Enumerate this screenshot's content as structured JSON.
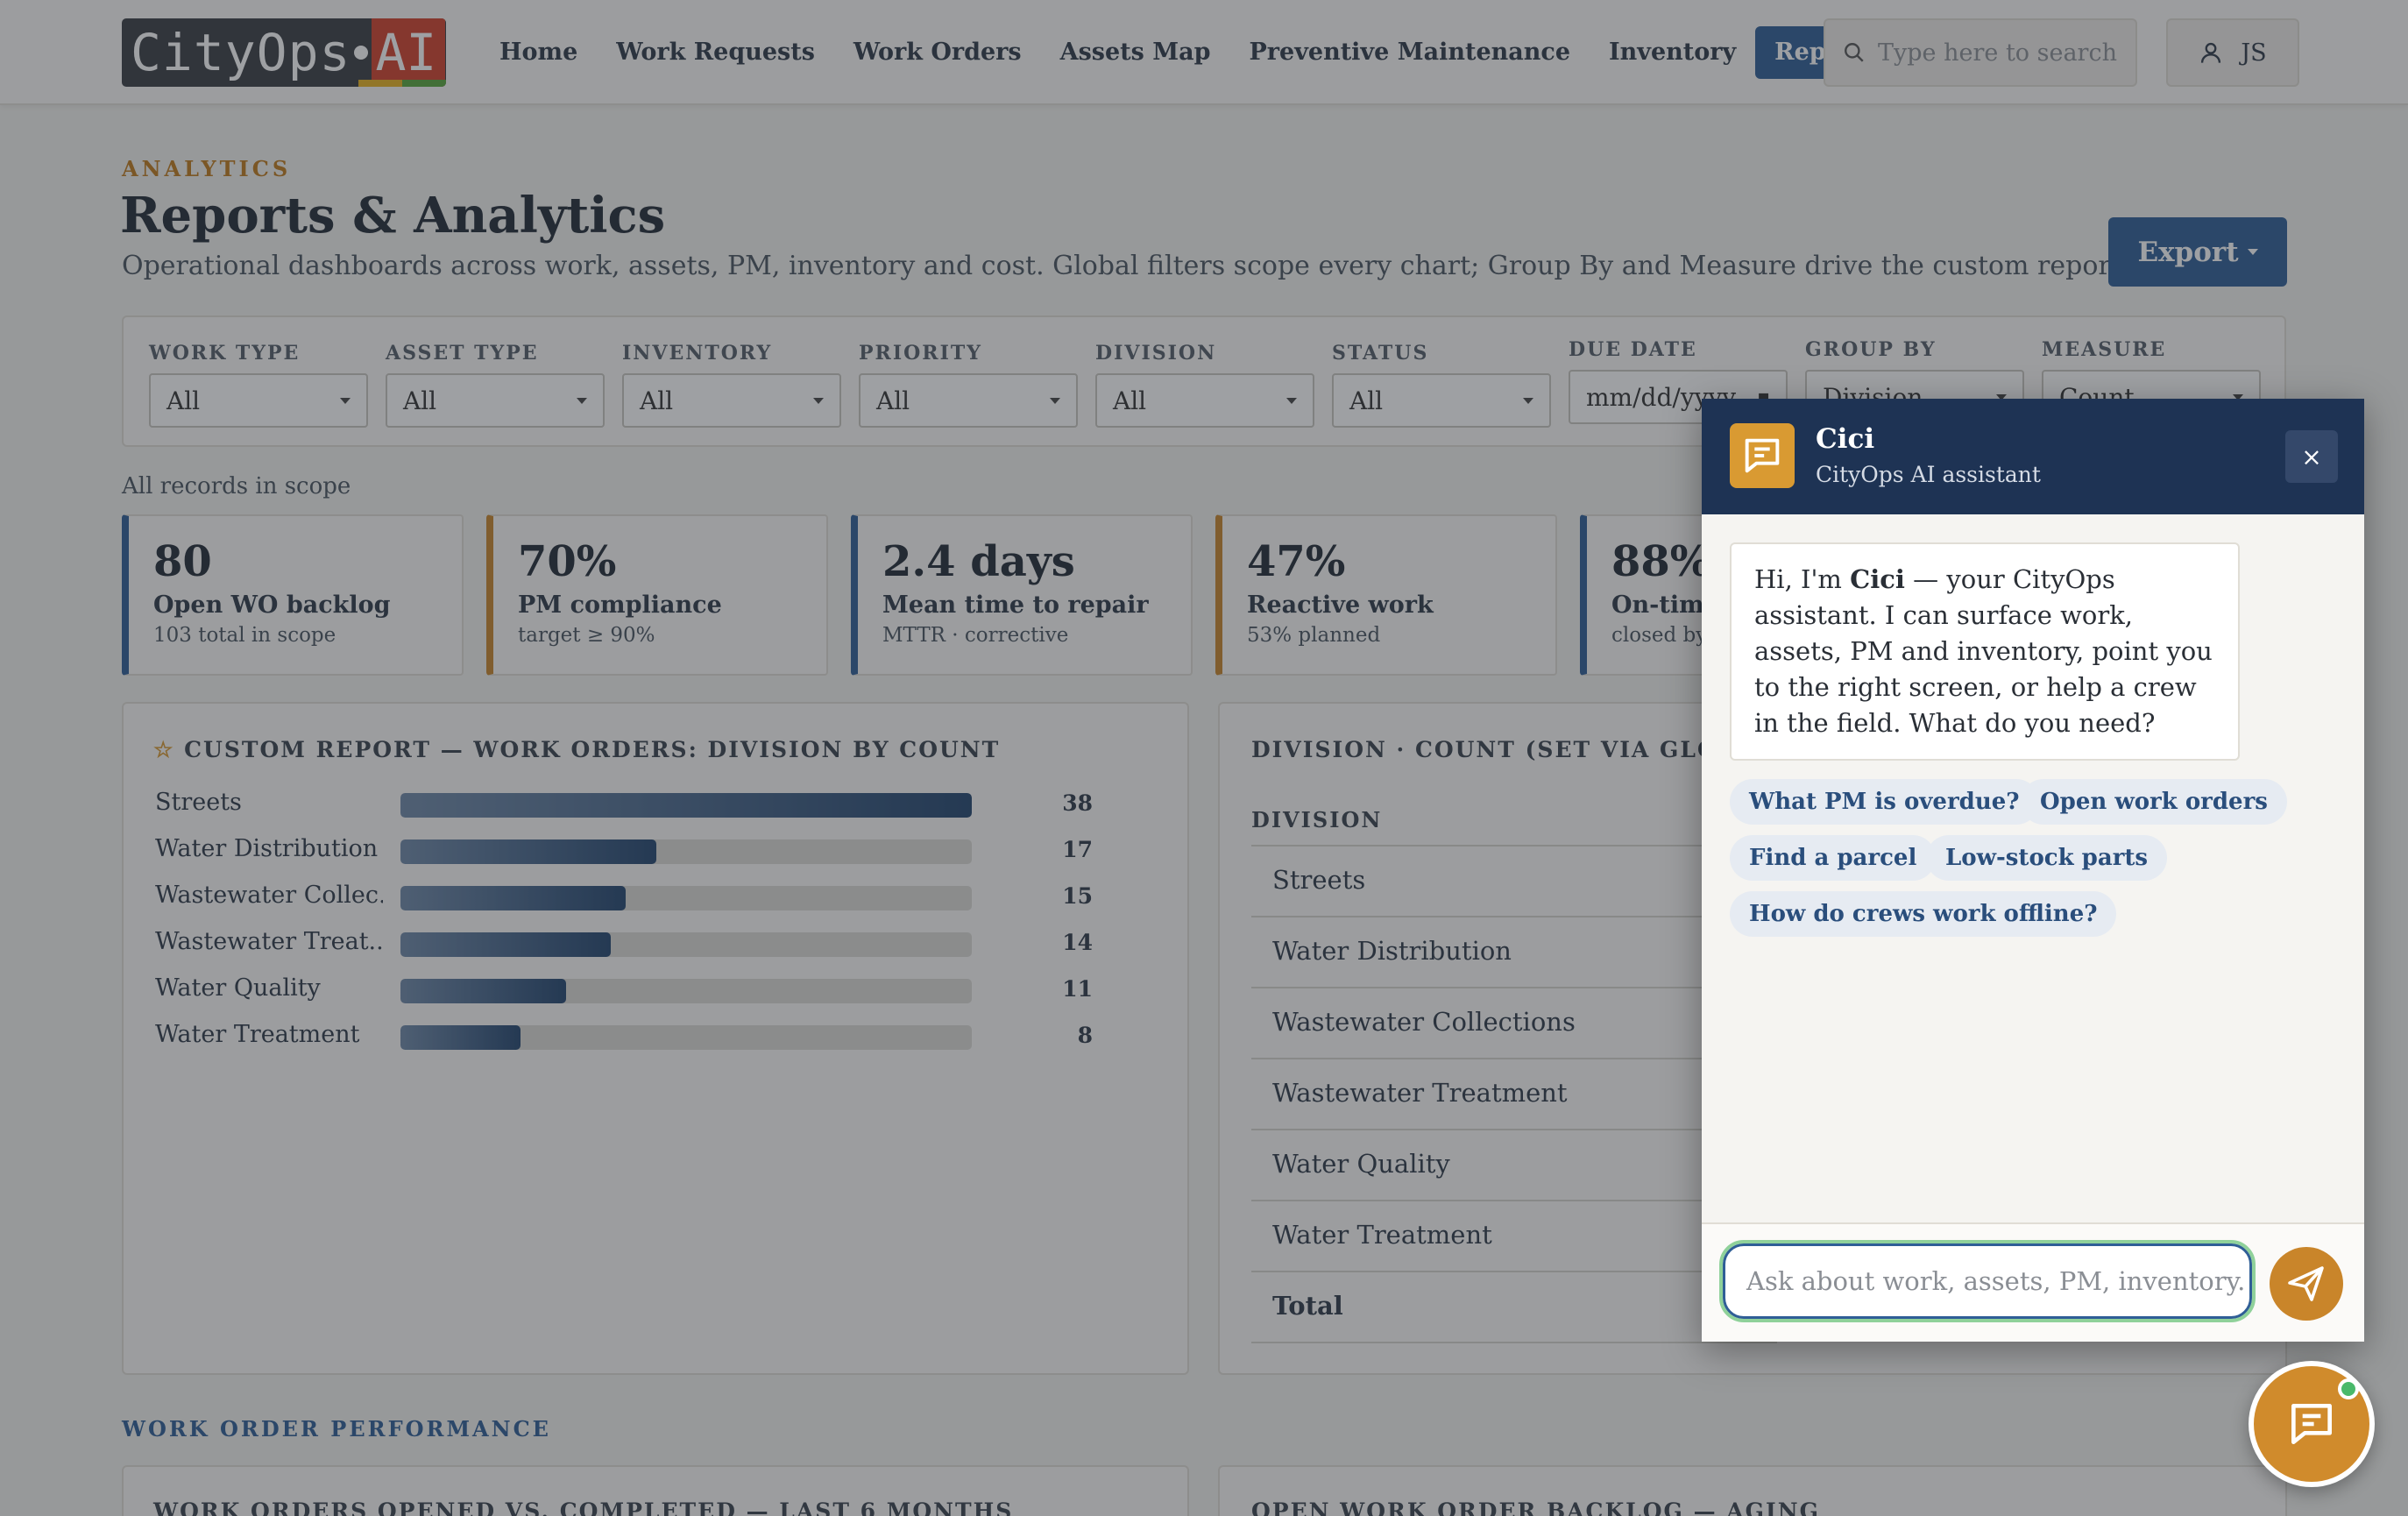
{
  "brand": {
    "logo_text": "CityOps",
    "logo_ai": "AI"
  },
  "nav": {
    "items": [
      {
        "label": "Home"
      },
      {
        "label": "Work Requests"
      },
      {
        "label": "Work Orders"
      },
      {
        "label": "Assets Map"
      },
      {
        "label": "Preventive Maintenance"
      },
      {
        "label": "Inventory"
      },
      {
        "label": "Reports"
      }
    ],
    "active": "Reports"
  },
  "search": {
    "placeholder": "Type here to search"
  },
  "user": {
    "initials": "JS"
  },
  "header": {
    "eyebrow": "ANALYTICS",
    "title": "Reports & Analytics",
    "subtitle": "Operational dashboards across work, assets, PM, inventory and cost. Global filters scope every chart; Group By and Measure drive the custom report.",
    "export_label": "Export"
  },
  "filters": [
    {
      "label": "WORK TYPE",
      "value": "All"
    },
    {
      "label": "ASSET TYPE",
      "value": "All"
    },
    {
      "label": "INVENTORY",
      "value": "All"
    },
    {
      "label": "PRIORITY",
      "value": "All"
    },
    {
      "label": "DIVISION",
      "value": "All"
    },
    {
      "label": "STATUS",
      "value": "All"
    },
    {
      "label": "DUE DATE",
      "value": "mm/dd/yyyy"
    },
    {
      "label": "GROUP BY",
      "value": "Division"
    },
    {
      "label": "MEASURE",
      "value": "Count"
    }
  ],
  "scope_text": "All records in scope",
  "kpis": [
    {
      "value": "80",
      "label": "Open WO backlog",
      "sub": "103 total in scope",
      "color": "#2f5e96"
    },
    {
      "value": "70%",
      "label": "PM compliance",
      "sub": "target ≥ 90%",
      "color": "#c9852a"
    },
    {
      "value": "2.4 days",
      "label": "Mean time to repair",
      "sub": "MTTR · corrective",
      "color": "#2f5e96"
    },
    {
      "value": "47%",
      "label": "Reactive work",
      "sub": "53% planned",
      "color": "#c9852a"
    },
    {
      "value": "88%",
      "label": "On-time",
      "sub": "closed by",
      "color": "#2f5e96"
    }
  ],
  "custom_report": {
    "title": "CUSTOM REPORT — WORK ORDERS: DIVISION BY COUNT",
    "chart_data": {
      "type": "bar",
      "categories": [
        "Streets",
        "Water Distribution",
        "Wastewater Collec...",
        "Wastewater Treat...",
        "Water Quality",
        "Water Treatment"
      ],
      "values": [
        38,
        17,
        15,
        14,
        11,
        8
      ],
      "max": 38
    }
  },
  "division_table": {
    "title": "DIVISION · COUNT (SET VIA GLOBAL G",
    "header": "DIVISION",
    "rows": [
      "Streets",
      "Water Distribution",
      "Wastewater Collections",
      "Wastewater Treatment",
      "Water Quality",
      "Water Treatment"
    ],
    "total_label": "Total"
  },
  "section_label": "WORK ORDER PERFORMANCE",
  "bottom_panels": [
    {
      "title": "WORK ORDERS OPENED VS. COMPLETED — LAST 6 MONTHS"
    },
    {
      "title": "OPEN WORK ORDER BACKLOG — AGING"
    }
  ],
  "chat": {
    "name": "Cici",
    "role": "CityOps AI assistant",
    "close_label": "×",
    "greeting_pre": "Hi, I'm ",
    "greeting_name": "Cici",
    "greeting_post": " — your CityOps assistant. I can surface work, assets, PM and inventory, point you to the right screen, or help a crew in the field. What do you need?",
    "chips": [
      "What PM is overdue?",
      "Open work orders",
      "Find a parcel",
      "Low-stock parts",
      "How do crews work offline?"
    ],
    "input_placeholder": "Ask about work, assets, PM, inventory."
  }
}
